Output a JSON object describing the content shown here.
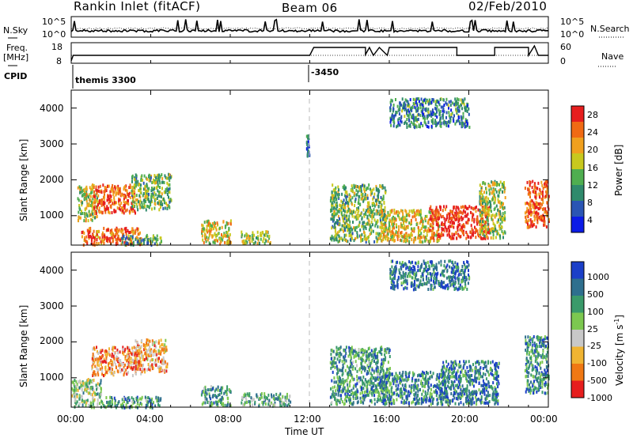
{
  "header": {
    "station": "Rankin Inlet (fitACF)",
    "beam": "Beam 06",
    "date": "02/Feb/2010"
  },
  "sky_panel": {
    "left_label": "N.Sky",
    "right_label": "N.Search",
    "left_ticks": [
      "10^5",
      "10^0"
    ],
    "right_ticks": [
      "10^5",
      "10^0"
    ]
  },
  "freq_panel": {
    "left_label_line1": "Freq.",
    "left_label_line2": "[MHz]",
    "right_label": "Nave",
    "left_ticks": [
      "18",
      "8"
    ],
    "right_ticks": [
      "60",
      "0"
    ]
  },
  "cpid_panel": {
    "label": "CPID",
    "entries": [
      {
        "time_hours": 0.0,
        "text": "themis 3300"
      },
      {
        "time_hours": 12.0,
        "text": "-3450"
      }
    ]
  },
  "chart_data": [
    {
      "type": "heatmap",
      "name": "power",
      "ylabel": "Slant Range [km]",
      "xlabel": "",
      "x_range_hours": [
        0,
        24
      ],
      "ylim": [
        180,
        4500
      ],
      "y_ticks": [
        "4000",
        "3000",
        "2000",
        "1000"
      ],
      "y_tick_values": [
        4000,
        3000,
        2000,
        1000
      ],
      "colorbar": {
        "label": "Power [dB]",
        "tick_labels": [
          "28",
          "24",
          "20",
          "16",
          "12",
          "8",
          "4"
        ],
        "colors": [
          "#0b1be6",
          "#2a55b4",
          "#2f8a6c",
          "#4fae50",
          "#c8c81e",
          "#f0a01e",
          "#f06a14",
          "#e61e1e"
        ]
      },
      "regions": [
        {
          "t0": 0.3,
          "t1": 1.3,
          "r0": 900,
          "r1": 1900,
          "level": 0.55
        },
        {
          "t0": 1.1,
          "t1": 3.2,
          "r0": 1100,
          "r1": 1900,
          "level": 0.85
        },
        {
          "t0": 3.0,
          "t1": 5.0,
          "r0": 1200,
          "r1": 2200,
          "level": 0.45
        },
        {
          "t0": 0.5,
          "t1": 3.5,
          "r0": 220,
          "r1": 700,
          "level": 0.8
        },
        {
          "t0": 2.5,
          "t1": 4.5,
          "r0": 220,
          "r1": 500,
          "level": 0.35
        },
        {
          "t0": 6.5,
          "t1": 8.0,
          "r0": 250,
          "r1": 900,
          "level": 0.6
        },
        {
          "t0": 8.5,
          "t1": 10.0,
          "r0": 250,
          "r1": 600,
          "level": 0.5
        },
        {
          "t0": 13.0,
          "t1": 15.8,
          "r0": 300,
          "r1": 1900,
          "level": 0.45
        },
        {
          "t0": 15.5,
          "t1": 18.5,
          "r0": 300,
          "r1": 1200,
          "level": 0.6
        },
        {
          "t0": 18.0,
          "t1": 21.0,
          "r0": 400,
          "r1": 1300,
          "level": 0.95
        },
        {
          "t0": 20.5,
          "t1": 21.8,
          "r0": 400,
          "r1": 2000,
          "level": 0.5
        },
        {
          "t0": 22.8,
          "t1": 24.0,
          "r0": 700,
          "r1": 2000,
          "level": 0.85
        },
        {
          "t0": 11.8,
          "t1": 12.0,
          "r0": 2700,
          "r1": 3300,
          "level": 0.2
        },
        {
          "t0": 16.0,
          "t1": 20.0,
          "r0": 3500,
          "r1": 4300,
          "level": 0.3
        }
      ]
    },
    {
      "type": "heatmap",
      "name": "velocity",
      "ylabel": "Slant Range [km]",
      "xlabel": "Time UT",
      "x_ticks": [
        "00:00",
        "04:00",
        "08:00",
        "12:00",
        "16:00",
        "20:00",
        "00:00"
      ],
      "x_tick_hours": [
        0,
        4,
        8,
        12,
        16,
        20,
        24
      ],
      "ylim": [
        180,
        4500
      ],
      "y_ticks": [
        "4000",
        "3000",
        "2000",
        "1000"
      ],
      "y_tick_values": [
        4000,
        3000,
        2000,
        1000
      ],
      "colorbar": {
        "label": "Velocity [m s",
        "label_sup": "-1",
        "label_tail": "]",
        "tick_labels": [
          "1000",
          "500",
          "100",
          "25",
          "-25",
          "-100",
          "-500",
          "-1000"
        ],
        "colors": [
          "#1b3fc8",
          "#2e6f8e",
          "#3a9a6a",
          "#7cc850",
          "#c8c8c8",
          "#f0b432",
          "#f07814",
          "#e61e1e"
        ]
      },
      "regions": [
        {
          "t0": 1.0,
          "t1": 3.5,
          "r0": 1100,
          "r1": 1900,
          "level": 0.25
        },
        {
          "t0": 3.2,
          "t1": 4.8,
          "r0": 1200,
          "r1": 2100,
          "level": 0.3
        },
        {
          "t0": 0.0,
          "t1": 1.5,
          "r0": 200,
          "r1": 1000,
          "level": 0.55
        },
        {
          "t0": 1.5,
          "t1": 4.5,
          "r0": 200,
          "r1": 500,
          "level": 0.7
        },
        {
          "t0": 6.5,
          "t1": 8.0,
          "r0": 250,
          "r1": 800,
          "level": 0.7
        },
        {
          "t0": 8.5,
          "t1": 11.0,
          "r0": 250,
          "r1": 600,
          "level": 0.65
        },
        {
          "t0": 13.0,
          "t1": 16.0,
          "r0": 300,
          "r1": 1900,
          "level": 0.7
        },
        {
          "t0": 15.5,
          "t1": 19.0,
          "r0": 300,
          "r1": 1200,
          "level": 0.75
        },
        {
          "t0": 18.5,
          "t1": 21.5,
          "r0": 300,
          "r1": 1500,
          "level": 0.8
        },
        {
          "t0": 22.8,
          "t1": 24.0,
          "r0": 600,
          "r1": 2200,
          "level": 0.75
        },
        {
          "t0": 16.0,
          "t1": 20.0,
          "r0": 3500,
          "r1": 4300,
          "level": 0.8
        }
      ]
    }
  ]
}
